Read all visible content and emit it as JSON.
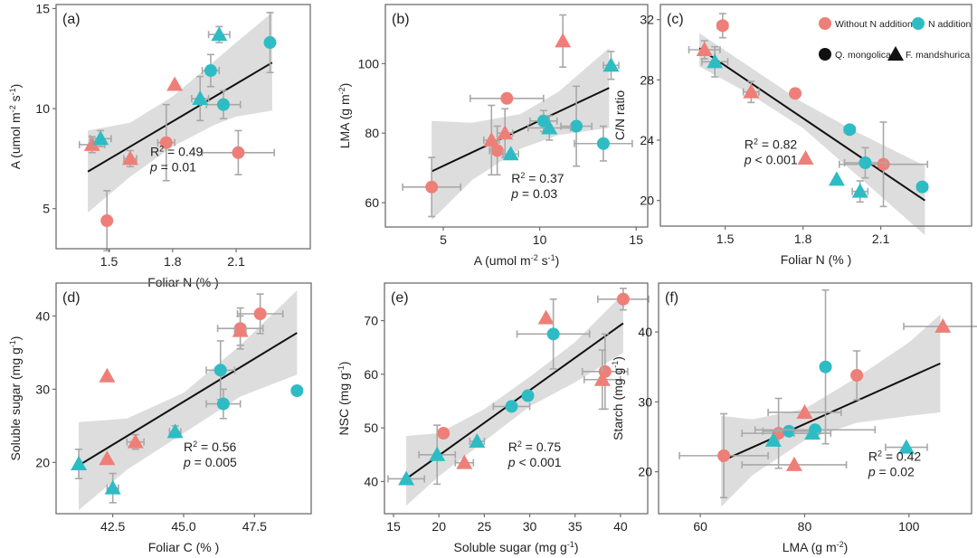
{
  "colors": {
    "without_n": "#ee7f78",
    "n_addition": "#2ebcc4",
    "band": "#d9d9d9",
    "frame": "#6e6e6e",
    "errorbar": "#a8a8a8",
    "line": "#111111"
  },
  "legend": {
    "without_n": "Without N addition",
    "n_addition": "N addition",
    "circle_species": "Q. mongolica",
    "triangle_species": "F. mandshurica"
  },
  "chart_data": [
    {
      "type": "scatter",
      "panel": "(a)",
      "xlabel": "Foliar N (%)",
      "ylabel": "A (umol m-2 s-1)",
      "xlim": [
        1.25,
        2.45
      ],
      "ylim": [
        3.0,
        15.2
      ],
      "xticks": [
        1.5,
        1.8,
        2.1
      ],
      "xtick_labels": [
        "1.5",
        "1.8",
        "2.1"
      ],
      "yticks": [
        5,
        10,
        15
      ],
      "ytick_labels": [
        "5",
        "10",
        "15"
      ],
      "stats": {
        "r2": "0.49",
        "p": "0.01",
        "p_op": "="
      },
      "fit": {
        "x": [
          1.4,
          2.27
        ],
        "y": [
          6.85,
          12.3
        ]
      },
      "band": {
        "x": [
          1.4,
          1.6,
          1.8,
          2.0,
          2.1,
          2.27
        ],
        "upper": [
          8.9,
          9.3,
          10.6,
          12.4,
          13.3,
          14.8
        ],
        "lower": [
          4.8,
          6.6,
          8.1,
          9.2,
          9.6,
          9.9
        ]
      },
      "points": [
        {
          "x": 1.49,
          "y": 4.4,
          "group": "without_n",
          "shape": "circle",
          "xerr": 0.02,
          "yerr": 1.5
        },
        {
          "x": 1.77,
          "y": 8.3,
          "group": "without_n",
          "shape": "circle",
          "xerr": 0.04,
          "yerr": 1.9
        },
        {
          "x": 2.11,
          "y": 7.8,
          "group": "without_n",
          "shape": "circle",
          "xerr": 0.17,
          "yerr": 1.1
        },
        {
          "x": 1.42,
          "y": 8.2,
          "group": "without_n",
          "shape": "triangle",
          "xerr": 0.06,
          "yerr": 0.4
        },
        {
          "x": 1.6,
          "y": 7.5,
          "group": "without_n",
          "shape": "triangle",
          "xerr": 0.03,
          "yerr": 0.4
        },
        {
          "x": 1.81,
          "y": 11.2,
          "group": "without_n",
          "shape": "triangle",
          "xerr": 0,
          "yerr": 0
        },
        {
          "x": 1.98,
          "y": 11.9,
          "group": "n_addition",
          "shape": "circle",
          "xerr": 0.04,
          "yerr": 0.8
        },
        {
          "x": 2.04,
          "y": 10.2,
          "group": "n_addition",
          "shape": "circle",
          "xerr": 0.08,
          "yerr": 0.7
        },
        {
          "x": 2.26,
          "y": 13.3,
          "group": "n_addition",
          "shape": "circle",
          "xerr": 0.02,
          "yerr": 1.5
        },
        {
          "x": 1.46,
          "y": 8.5,
          "group": "n_addition",
          "shape": "triangle",
          "xerr": 0.05,
          "yerr": 0.4
        },
        {
          "x": 1.93,
          "y": 10.5,
          "group": "n_addition",
          "shape": "triangle",
          "xerr": 0.04,
          "yerr": 1.1
        },
        {
          "x": 2.02,
          "y": 13.7,
          "group": "n_addition",
          "shape": "triangle",
          "xerr": 0.05,
          "yerr": 0.4
        }
      ]
    },
    {
      "type": "scatter",
      "panel": "(b)",
      "xlabel": "A (umol m-2 s-1)",
      "ylabel": "LMA (g m-2)",
      "xlim": [
        2.0,
        15.6
      ],
      "ylim": [
        53,
        117
      ],
      "xticks": [
        5,
        10,
        15
      ],
      "xtick_labels": [
        "5",
        "10",
        "15"
      ],
      "yticks": [
        60,
        80,
        100
      ],
      "ytick_labels": [
        "60",
        "80",
        "100"
      ],
      "stats": {
        "r2": "0.37",
        "p": "0.03",
        "p_op": "="
      },
      "fit": {
        "x": [
          4.4,
          13.6
        ],
        "y": [
          69.0,
          93.0
        ]
      },
      "band": {
        "x": [
          4.4,
          6.5,
          9.0,
          11.0,
          13.6
        ],
        "upper": [
          83.5,
          83.0,
          85.5,
          92.0,
          104.5
        ],
        "lower": [
          55.0,
          66.5,
          75.5,
          79.5,
          81.5
        ]
      },
      "points": [
        {
          "x": 4.4,
          "y": 64.5,
          "group": "without_n",
          "shape": "circle",
          "xerr": 1.5,
          "yerr": 8.5
        },
        {
          "x": 7.8,
          "y": 75.0,
          "group": "without_n",
          "shape": "circle",
          "xerr": 0.4,
          "yerr": 7.0
        },
        {
          "x": 8.3,
          "y": 90.0,
          "group": "without_n",
          "shape": "circle",
          "xerr": 1.9,
          "yerr": 0
        },
        {
          "x": 7.5,
          "y": 78.0,
          "group": "without_n",
          "shape": "triangle",
          "xerr": 0.4,
          "yerr": 10.0
        },
        {
          "x": 8.2,
          "y": 80.0,
          "group": "without_n",
          "shape": "triangle",
          "xerr": 0.4,
          "yerr": 7.0
        },
        {
          "x": 11.2,
          "y": 106.5,
          "group": "without_n",
          "shape": "triangle",
          "xerr": 0,
          "yerr": 7.5
        },
        {
          "x": 10.2,
          "y": 83.5,
          "group": "n_addition",
          "shape": "circle",
          "xerr": 0.7,
          "yerr": 3.0
        },
        {
          "x": 11.9,
          "y": 82.0,
          "group": "n_addition",
          "shape": "circle",
          "xerr": 0.8,
          "yerr": 11.5
        },
        {
          "x": 13.3,
          "y": 77.0,
          "group": "n_addition",
          "shape": "circle",
          "xerr": 1.5,
          "yerr": 5.0
        },
        {
          "x": 8.5,
          "y": 74.0,
          "group": "n_addition",
          "shape": "triangle",
          "xerr": 0.4,
          "yerr": 0
        },
        {
          "x": 10.5,
          "y": 81.5,
          "group": "n_addition",
          "shape": "triangle",
          "xerr": 1.1,
          "yerr": 3.5
        },
        {
          "x": 13.7,
          "y": 99.5,
          "group": "n_addition",
          "shape": "triangle",
          "xerr": 0.4,
          "yerr": 4.0
        }
      ]
    },
    {
      "type": "scatter",
      "panel": "(c)",
      "xlabel": "Foliar N (%)",
      "ylabel": "C/N ratio",
      "xlim": [
        1.25,
        2.45
      ],
      "ylim": [
        18.3,
        33.0
      ],
      "xticks": [
        1.5,
        1.8,
        2.1
      ],
      "xtick_labels": [
        "1.5",
        "1.8",
        "2.1"
      ],
      "yticks": [
        20,
        24,
        28,
        32
      ],
      "ytick_labels": [
        "20",
        "24",
        "28",
        "32"
      ],
      "stats": {
        "r2": "0.82",
        "p": "0.001",
        "p_op": "<"
      },
      "fit": {
        "x": [
          1.4,
          2.27
        ],
        "y": [
          30.1,
          20.0
        ]
      },
      "band": {
        "x": [
          1.4,
          1.6,
          1.8,
          2.0,
          2.27
        ],
        "upper": [
          31.1,
          28.8,
          26.5,
          24.6,
          22.3
        ],
        "lower": [
          28.9,
          27.0,
          24.8,
          21.8,
          17.7
        ]
      },
      "points": [
        {
          "x": 1.49,
          "y": 31.6,
          "group": "without_n",
          "shape": "circle",
          "xerr": 0.02,
          "yerr": 0.8
        },
        {
          "x": 1.77,
          "y": 27.1,
          "group": "without_n",
          "shape": "circle",
          "xerr": 0,
          "yerr": 0
        },
        {
          "x": 2.11,
          "y": 22.4,
          "group": "without_n",
          "shape": "circle",
          "xerr": 0.17,
          "yerr": 2.8
        },
        {
          "x": 1.42,
          "y": 30.0,
          "group": "without_n",
          "shape": "triangle",
          "xerr": 0.06,
          "yerr": 0.6
        },
        {
          "x": 1.6,
          "y": 27.2,
          "group": "without_n",
          "shape": "triangle",
          "xerr": 0.03,
          "yerr": 0.7
        },
        {
          "x": 1.81,
          "y": 22.8,
          "group": "without_n",
          "shape": "triangle",
          "xerr": 0,
          "yerr": 0
        },
        {
          "x": 1.98,
          "y": 24.7,
          "group": "n_addition",
          "shape": "circle",
          "xerr": 0.02,
          "yerr": 0
        },
        {
          "x": 2.04,
          "y": 22.5,
          "group": "n_addition",
          "shape": "circle",
          "xerr": 0.08,
          "yerr": 1.0
        },
        {
          "x": 2.26,
          "y": 20.9,
          "group": "n_addition",
          "shape": "circle",
          "xerr": 0.02,
          "yerr": 0
        },
        {
          "x": 1.46,
          "y": 29.2,
          "group": "n_addition",
          "shape": "triangle",
          "xerr": 0.05,
          "yerr": 1.0
        },
        {
          "x": 1.93,
          "y": 21.4,
          "group": "n_addition",
          "shape": "triangle",
          "xerr": 0,
          "yerr": 0
        },
        {
          "x": 2.02,
          "y": 20.6,
          "group": "n_addition",
          "shape": "triangle",
          "xerr": 0.03,
          "yerr": 0.7
        }
      ]
    },
    {
      "type": "scatter",
      "panel": "(d)",
      "xlabel": "Foliar C (%)",
      "ylabel": "Soluble sugar (mg g-1)",
      "xlim": [
        40.5,
        49.5
      ],
      "ylim": [
        13,
        44.5
      ],
      "xticks": [
        42.5,
        45.0,
        47.5
      ],
      "xtick_labels": [
        "42.5",
        "45.0",
        "47.5"
      ],
      "yticks": [
        20,
        30,
        40
      ],
      "ytick_labels": [
        "20",
        "30",
        "40"
      ],
      "stats": {
        "r2": "0.56",
        "p": "0.005",
        "p_op": "="
      },
      "fit": {
        "x": [
          41.3,
          49.0
        ],
        "y": [
          19.6,
          37.7
        ]
      },
      "band": {
        "x": [
          41.3,
          43.0,
          45.0,
          47.0,
          49.0
        ],
        "upper": [
          25.5,
          26.0,
          29.5,
          36.0,
          43.5
        ],
        "lower": [
          13.5,
          19.0,
          24.0,
          29.0,
          32.0
        ]
      },
      "points": [
        {
          "x": 47.0,
          "y": 38.3,
          "group": "without_n",
          "shape": "circle",
          "xerr": 0.8,
          "yerr": 2.8
        },
        {
          "x": 47.7,
          "y": 40.3,
          "group": "without_n",
          "shape": "circle",
          "xerr": 0.8,
          "yerr": 2.7
        },
        {
          "x": 42.3,
          "y": 31.8,
          "group": "without_n",
          "shape": "triangle",
          "xerr": 0,
          "yerr": 0
        },
        {
          "x": 42.3,
          "y": 20.5,
          "group": "without_n",
          "shape": "triangle",
          "xerr": 0,
          "yerr": 0
        },
        {
          "x": 43.3,
          "y": 22.8,
          "group": "without_n",
          "shape": "triangle",
          "xerr": 0.3,
          "yerr": 1.0
        },
        {
          "x": 47.0,
          "y": 38.0,
          "group": "without_n",
          "shape": "triangle",
          "xerr": 0.2,
          "yerr": 2.0
        },
        {
          "x": 46.3,
          "y": 32.6,
          "group": "n_addition",
          "shape": "circle",
          "xerr": 0.5,
          "yerr": 4.0
        },
        {
          "x": 46.4,
          "y": 28.0,
          "group": "n_addition",
          "shape": "circle",
          "xerr": 0.6,
          "yerr": 2.0
        },
        {
          "x": 49.0,
          "y": 29.8,
          "group": "n_addition",
          "shape": "circle",
          "xerr": 0,
          "yerr": 0
        },
        {
          "x": 41.3,
          "y": 19.8,
          "group": "n_addition",
          "shape": "triangle",
          "xerr": 0,
          "yerr": 2.0
        },
        {
          "x": 42.5,
          "y": 16.5,
          "group": "n_addition",
          "shape": "triangle",
          "xerr": 0.2,
          "yerr": 2.0
        },
        {
          "x": 44.7,
          "y": 24.2,
          "group": "n_addition",
          "shape": "triangle",
          "xerr": 0.2,
          "yerr": 0.8
        }
      ]
    },
    {
      "type": "scatter",
      "panel": "(e)",
      "xlabel": "Soluble sugar (mg g-1)",
      "ylabel": "NSC (mg g-1)",
      "xlim": [
        14,
        43
      ],
      "ylim": [
        34,
        77
      ],
      "xticks": [
        15,
        20,
        25,
        30,
        35,
        40
      ],
      "xtick_labels": [
        "15",
        "20",
        "25",
        "30",
        "35",
        "40"
      ],
      "yticks": [
        40,
        50,
        60,
        70
      ],
      "ytick_labels": [
        "40",
        "50",
        "60",
        "70"
      ],
      "stats": {
        "r2": "0.75",
        "p": "0.001",
        "p_op": "<"
      },
      "fit": {
        "x": [
          16.4,
          40.3
        ],
        "y": [
          40.5,
          69.5
        ]
      },
      "band": {
        "x": [
          16.4,
          20.0,
          25.0,
          30.0,
          35.0,
          40.3
        ],
        "upper": [
          48.5,
          49.0,
          53.5,
          59.5,
          66.0,
          75.0
        ],
        "lower": [
          35.5,
          41.0,
          47.5,
          54.0,
          58.5,
          64.0
        ]
      },
      "points": [
        {
          "x": 20.5,
          "y": 49.0,
          "group": "without_n",
          "shape": "circle",
          "xerr": 0,
          "yerr": 0
        },
        {
          "x": 38.3,
          "y": 60.5,
          "group": "without_n",
          "shape": "circle",
          "xerr": 2.5,
          "yerr": 7.0
        },
        {
          "x": 40.3,
          "y": 74.0,
          "group": "without_n",
          "shape": "circle",
          "xerr": 2.8,
          "yerr": 2.0
        },
        {
          "x": 22.8,
          "y": 43.5,
          "group": "without_n",
          "shape": "triangle",
          "xerr": 1.0,
          "yerr": 0
        },
        {
          "x": 31.8,
          "y": 70.5,
          "group": "without_n",
          "shape": "triangle",
          "xerr": 0,
          "yerr": 0
        },
        {
          "x": 38.0,
          "y": 59.0,
          "group": "without_n",
          "shape": "triangle",
          "xerr": 2.0,
          "yerr": 5.5
        },
        {
          "x": 28.0,
          "y": 54.0,
          "group": "n_addition",
          "shape": "circle",
          "xerr": 2.0,
          "yerr": 0
        },
        {
          "x": 29.8,
          "y": 56.0,
          "group": "n_addition",
          "shape": "circle",
          "xerr": 0,
          "yerr": 0
        },
        {
          "x": 32.6,
          "y": 67.5,
          "group": "n_addition",
          "shape": "circle",
          "xerr": 4.0,
          "yerr": 6.5
        },
        {
          "x": 16.4,
          "y": 40.5,
          "group": "n_addition",
          "shape": "triangle",
          "xerr": 2.0,
          "yerr": 0
        },
        {
          "x": 19.8,
          "y": 45.0,
          "group": "n_addition",
          "shape": "triangle",
          "xerr": 2.0,
          "yerr": 5.5
        },
        {
          "x": 24.2,
          "y": 47.5,
          "group": "n_addition",
          "shape": "triangle",
          "xerr": 0.8,
          "yerr": 0
        }
      ]
    },
    {
      "type": "scatter",
      "panel": "(f)",
      "xlabel": "LMA (g m-2)",
      "ylabel": "Starch (mg g-1)",
      "xlim": [
        52,
        112
      ],
      "ylim": [
        14,
        47
      ],
      "xticks": [
        60,
        80,
        100
      ],
      "xtick_labels": [
        "60",
        "80",
        "100"
      ],
      "yticks": [
        20,
        30,
        40
      ],
      "ytick_labels": [
        "20",
        "30",
        "40"
      ],
      "stats": {
        "r2": "0.42",
        "p": "0.02",
        "p_op": "="
      },
      "fit": {
        "x": [
          64.0,
          106.0
        ],
        "y": [
          21.5,
          35.5
        ]
      },
      "band": {
        "x": [
          64.0,
          70.0,
          80.0,
          90.0,
          100.0,
          106.0
        ],
        "upper": [
          28.0,
          27.5,
          29.0,
          33.5,
          38.5,
          42.5
        ],
        "lower": [
          15.0,
          19.5,
          24.5,
          27.0,
          28.0,
          28.5
        ]
      },
      "points": [
        {
          "x": 64.5,
          "y": 22.3,
          "group": "without_n",
          "shape": "circle",
          "xerr": 8.5,
          "yerr": 6.0
        },
        {
          "x": 75.0,
          "y": 25.5,
          "group": "without_n",
          "shape": "circle",
          "xerr": 7.0,
          "yerr": 5.0
        },
        {
          "x": 90.0,
          "y": 33.8,
          "group": "without_n",
          "shape": "circle",
          "xerr": 0,
          "yerr": 3.5
        },
        {
          "x": 78.0,
          "y": 21.0,
          "group": "without_n",
          "shape": "triangle",
          "xerr": 10.0,
          "yerr": 0
        },
        {
          "x": 80.0,
          "y": 28.5,
          "group": "without_n",
          "shape": "triangle",
          "xerr": 7.0,
          "yerr": 0
        },
        {
          "x": 106.5,
          "y": 40.8,
          "group": "without_n",
          "shape": "triangle",
          "xerr": 7.5,
          "yerr": 0
        },
        {
          "x": 77.0,
          "y": 25.8,
          "group": "n_addition",
          "shape": "circle",
          "xerr": 5.0,
          "yerr": 0
        },
        {
          "x": 82.0,
          "y": 26.0,
          "group": "n_addition",
          "shape": "circle",
          "xerr": 11.5,
          "yerr": 0
        },
        {
          "x": 84.0,
          "y": 35.0,
          "group": "n_addition",
          "shape": "circle",
          "xerr": 0,
          "yerr": 11.0
        },
        {
          "x": 74.0,
          "y": 24.5,
          "group": "n_addition",
          "shape": "triangle",
          "xerr": 0,
          "yerr": 0
        },
        {
          "x": 81.5,
          "y": 25.5,
          "group": "n_addition",
          "shape": "triangle",
          "xerr": 3.5,
          "yerr": 0
        },
        {
          "x": 99.5,
          "y": 23.5,
          "group": "n_addition",
          "shape": "triangle",
          "xerr": 4.0,
          "yerr": 0
        }
      ]
    }
  ]
}
